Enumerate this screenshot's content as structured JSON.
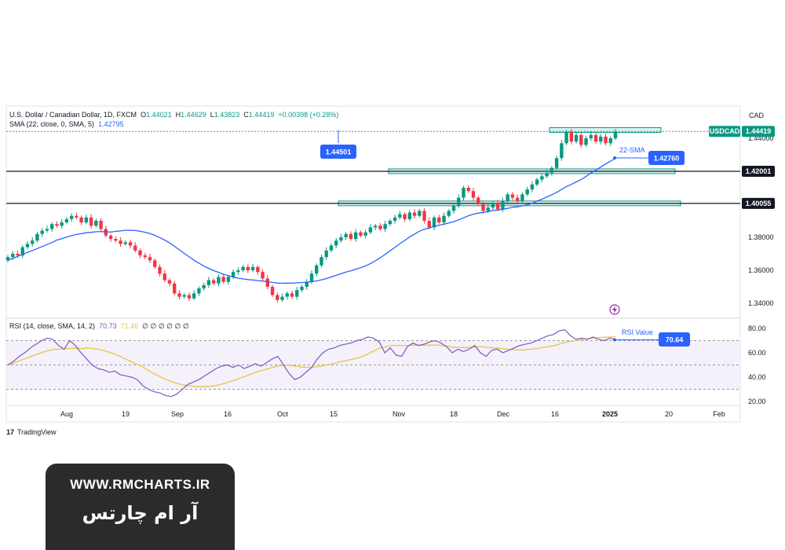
{
  "header": {
    "symbol_title": "U.S. Dollar / Canadian Dollar, 1D, FXCM",
    "open_label": "O",
    "open": "1.44021",
    "high_label": "H",
    "high": "1.44629",
    "low_label": "L",
    "low": "1.43823",
    "close_label": "C",
    "close": "1.44419",
    "change": "+0.00398 (+0.28%)",
    "sma_label": "SMA (22, close, 0, SMA, 5)",
    "sma_value": "1.42795",
    "currency": "CAD"
  },
  "rsi_header": {
    "label": "RSI (14, close, SMA, 14, 2)",
    "rsi": "70.73",
    "ma": "71.46",
    "extra": "∅ ∅ ∅ ∅ ∅ ∅"
  },
  "price_axis": {
    "ticks": [
      "1.44000",
      "1.38000",
      "1.36000",
      "1.34000"
    ],
    "range": [
      1.328,
      1.446
    ]
  },
  "rsi_axis": {
    "ticks": [
      "80.00",
      "60.00",
      "40.00",
      "20.00"
    ],
    "range": [
      14,
      86
    ],
    "bands": [
      70,
      50,
      30
    ]
  },
  "x_axis": {
    "ticks": [
      "Aug",
      "19",
      "Sep",
      "16",
      "Oct",
      "15",
      "Nov",
      "18",
      "Dec",
      "16",
      "2025",
      "20",
      "Feb"
    ]
  },
  "labels": {
    "ticker_tag": "USDCAD",
    "last_price": "1.44419",
    "level_1": "1.42001",
    "level_2": "1.40055",
    "callout_high": "1.44501",
    "callout_sma_name": "22-SMA",
    "callout_sma": "1.42760",
    "callout_rsi_name": "RSI Value",
    "callout_rsi": "70.64"
  },
  "watermark": {
    "line1": "WWW.RMCHARTS.IR",
    "line2": "آر ام چارتس"
  },
  "brand": "TradingView",
  "colors": {
    "up": "#089981",
    "down": "#f23645",
    "sma": "#2962ff",
    "rsi": "#7e57c2",
    "rsi_ma": "#e8c347",
    "zone": "#b2dfdb",
    "zone_border": "#089981"
  },
  "chart_data": [
    {
      "type": "candlestick",
      "title": "U.S. Dollar / Canadian Dollar, 1D, FXCM",
      "ylabel": "CAD",
      "ylim": [
        1.328,
        1.446
      ],
      "x_ticks": [
        "Aug",
        "19",
        "Sep",
        "16",
        "Oct",
        "15",
        "Nov",
        "18",
        "Dec",
        "16",
        "2025",
        "20",
        "Feb"
      ],
      "candles_close": [
        1.368,
        1.37,
        1.369,
        1.374,
        1.376,
        1.378,
        1.382,
        1.384,
        1.385,
        1.388,
        1.387,
        1.389,
        1.391,
        1.393,
        1.392,
        1.389,
        1.392,
        1.387,
        1.39,
        1.385,
        1.381,
        1.379,
        1.378,
        1.376,
        1.377,
        1.375,
        1.372,
        1.369,
        1.368,
        1.366,
        1.362,
        1.358,
        1.354,
        1.352,
        1.346,
        1.344,
        1.345,
        1.343,
        1.346,
        1.349,
        1.351,
        1.354,
        1.352,
        1.356,
        1.353,
        1.356,
        1.359,
        1.36,
        1.362,
        1.36,
        1.362,
        1.359,
        1.355,
        1.35,
        1.345,
        1.342,
        1.344,
        1.346,
        1.344,
        1.348,
        1.35,
        1.353,
        1.358,
        1.363,
        1.368,
        1.372,
        1.375,
        1.378,
        1.38,
        1.382,
        1.379,
        1.383,
        1.381,
        1.383,
        1.386,
        1.387,
        1.385,
        1.388,
        1.39,
        1.392,
        1.394,
        1.391,
        1.395,
        1.393,
        1.396,
        1.39,
        1.386,
        1.392,
        1.389,
        1.393,
        1.396,
        1.399,
        1.404,
        1.41,
        1.408,
        1.404,
        1.4,
        1.396,
        1.398,
        1.401,
        1.397,
        1.402,
        1.406,
        1.404,
        1.402,
        1.406,
        1.409,
        1.412,
        1.415,
        1.417,
        1.419,
        1.422,
        1.428,
        1.437,
        1.444,
        1.438,
        1.442,
        1.436,
        1.44,
        1.442,
        1.438,
        1.441,
        1.437,
        1.44,
        1.444
      ],
      "series": [
        {
          "name": "SMA (22, close, 0, SMA, 5)",
          "last": 1.42795
        }
      ],
      "levels": [
        1.44501,
        1.42001,
        1.40055
      ]
    },
    {
      "type": "line",
      "title": "RSI (14, close, SMA, 14, 2)",
      "ylim": [
        14,
        86
      ],
      "rsi_values": [
        50,
        53,
        57,
        60,
        64,
        67,
        70,
        72,
        71,
        66,
        63,
        70,
        66,
        60,
        55,
        50,
        47,
        46,
        44,
        45,
        42,
        41,
        40,
        38,
        33,
        30,
        28,
        27,
        25,
        24,
        26,
        30,
        34,
        36,
        38,
        41,
        44,
        47,
        49,
        50,
        48,
        50,
        47,
        49,
        51,
        49,
        52,
        55,
        57,
        50,
        43,
        38,
        40,
        44,
        48,
        55,
        60,
        63,
        64,
        66,
        67,
        68,
        70,
        71,
        73,
        72,
        69,
        60,
        64,
        58,
        57,
        65,
        68,
        66,
        67,
        69,
        70,
        68,
        65,
        60,
        63,
        61,
        63,
        66,
        60,
        57,
        62,
        63,
        60,
        62,
        64,
        66,
        67,
        68,
        70,
        72,
        74,
        75,
        78,
        79,
        74,
        71,
        72,
        71,
        73,
        71,
        70,
        72,
        70.64
      ],
      "rsi_last": 70.64,
      "ma_last": 71.46,
      "bands": [
        70,
        50,
        30
      ]
    }
  ]
}
